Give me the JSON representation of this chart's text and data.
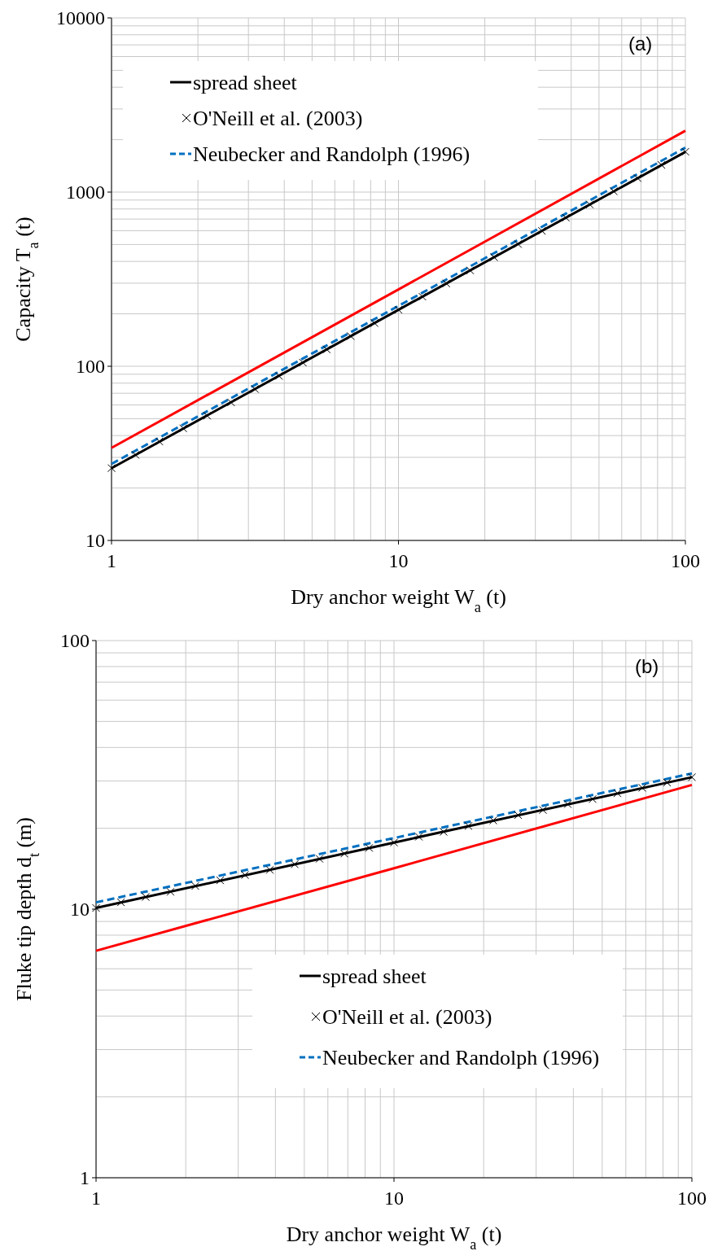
{
  "chart_data": [
    {
      "type": "line",
      "xlabel": "Dry anchor weight W$_{a}$ (t)",
      "ylabel": "Capacity T$_{a}$ (t)",
      "log": "xy",
      "grid": true,
      "legend": "top left",
      "xlim": [
        1,
        100
      ],
      "xticks": [
        1,
        10,
        100
      ],
      "ylim": [
        10,
        10000
      ],
      "yticks": [
        10,
        100,
        1000,
        10000
      ],
      "annotations": [
        "(a)"
      ],
      "series": [
        {
          "name": "spread sheet",
          "color": "#000000",
          "line_style": "solid",
          "x": [
            1,
            10,
            100
          ],
          "values": [
            26,
            211,
            1700
          ]
        },
        {
          "name": "O'Neill et al. (2003)",
          "type": "scatter",
          "marker": "cross",
          "color": "#000000",
          "x": [
            1,
            1.212,
            1.468,
            1.778,
            2.154,
            2.61,
            3.162,
            3.831,
            4.642,
            5.623,
            6.813,
            8.254,
            10,
            12.12,
            14.68,
            17.78,
            21.54,
            26.1,
            31.62,
            38.31,
            46.42,
            56.23,
            68.13,
            82.54,
            100
          ],
          "values": [
            26,
            31,
            37,
            44,
            52,
            62,
            74,
            88,
            105,
            125,
            149,
            177,
            211,
            251,
            299,
            355,
            423,
            503,
            599,
            713,
            849,
            1011,
            1203,
            1432,
            1705
          ]
        },
        {
          "color": "#ff0000",
          "line_style": "solid",
          "x": [
            1,
            10,
            100
          ],
          "values": [
            34,
            276,
            2250
          ]
        },
        {
          "name": "Neubecker and Randolph (1996)",
          "color": "#0070c0",
          "line_style": "dashed",
          "x": [
            1,
            10,
            100
          ],
          "values": [
            27.5,
            222,
            1800
          ]
        }
      ]
    },
    {
      "type": "line",
      "xlabel": "Dry anchor weight W$_{a}$ (t)",
      "ylabel": "Fluke tip depth d$_{t}$ (m)",
      "log": "xy",
      "grid": true,
      "legend": "bottom right",
      "xlim": [
        1,
        100
      ],
      "xticks": [
        1,
        10,
        100
      ],
      "ylim": [
        1,
        100
      ],
      "yticks": [
        1,
        10,
        100
      ],
      "annotations": [
        "(b)"
      ],
      "series": [
        {
          "name": "spread sheet",
          "color": "#000000",
          "line_style": "solid",
          "x": [
            1,
            10,
            100
          ],
          "values": [
            10.1,
            17.7,
            31
          ]
        },
        {
          "name": "O'Neill et al. (2003)",
          "type": "scatter",
          "marker": "cross",
          "color": "#000000",
          "x": [
            1,
            1.212,
            1.468,
            1.778,
            2.154,
            2.61,
            3.162,
            3.831,
            4.642,
            5.623,
            6.813,
            8.254,
            10,
            12.12,
            14.68,
            17.78,
            21.54,
            26.1,
            31.62,
            38.31,
            46.42,
            56.23,
            68.13,
            82.54,
            100
          ],
          "values": [
            10.1,
            10.6,
            11.1,
            11.6,
            12.2,
            12.8,
            13.4,
            14.0,
            14.7,
            15.4,
            16.1,
            16.9,
            17.7,
            18.6,
            19.4,
            20.4,
            21.4,
            22.4,
            23.4,
            24.6,
            25.7,
            27.0,
            28.3,
            29.6,
            31.0
          ]
        },
        {
          "color": "#ff0000",
          "line_style": "solid",
          "x": [
            1,
            10,
            100
          ],
          "values": [
            7,
            14.2,
            29
          ]
        },
        {
          "name": "Neubecker and Randolph (1996)",
          "color": "#0070c0",
          "line_style": "dashed",
          "x": [
            1,
            10,
            100
          ],
          "values": [
            10.6,
            18.4,
            32
          ]
        }
      ]
    }
  ]
}
